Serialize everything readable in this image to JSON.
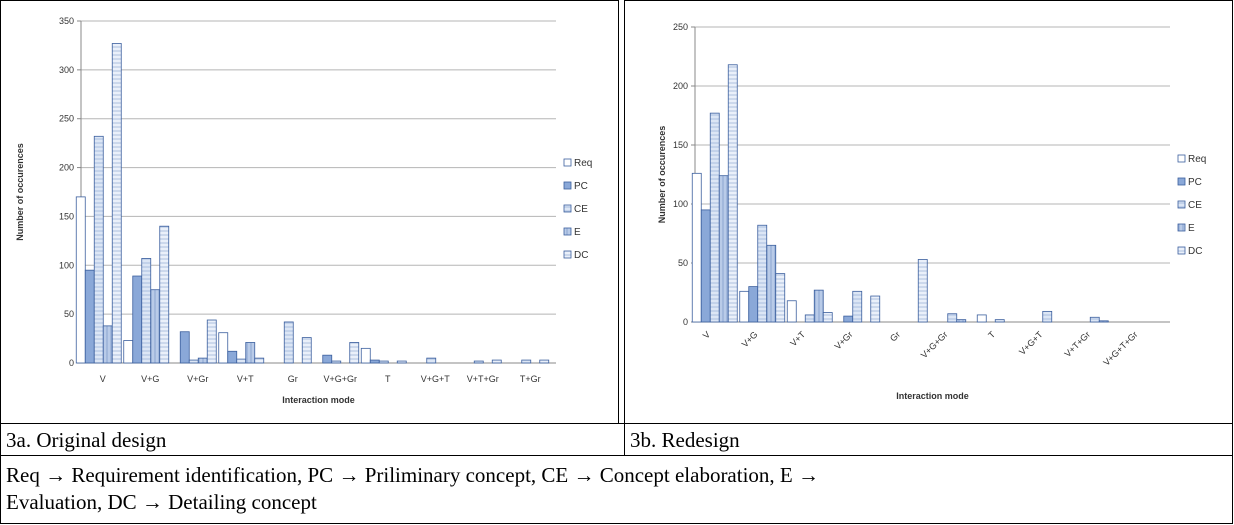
{
  "chart_data": [
    {
      "type": "bar",
      "title": "",
      "xlabel": "Interaction mode",
      "ylabel": "Number of occurences",
      "ylim": [
        0,
        350
      ],
      "yticks": [
        0,
        50,
        100,
        150,
        200,
        250,
        300,
        350
      ],
      "grid": true,
      "legend": "right",
      "categories": [
        "V",
        "V+G",
        "V+Gr",
        "V+T",
        "Gr",
        "V+G+Gr",
        "T",
        "V+G+T",
        "V+T+Gr",
        "T+Gr"
      ],
      "series": [
        {
          "name": "Req",
          "values": [
            170,
            23,
            0,
            31,
            0,
            0,
            15,
            0,
            0,
            0
          ]
        },
        {
          "name": "PC",
          "values": [
            95,
            89,
            32,
            12,
            0,
            8,
            3,
            0,
            0,
            0
          ]
        },
        {
          "name": "CE",
          "values": [
            232,
            107,
            3,
            4,
            42,
            2,
            2,
            5,
            2,
            3
          ]
        },
        {
          "name": "E",
          "values": [
            38,
            75,
            5,
            21,
            0,
            0,
            0,
            0,
            0,
            0
          ]
        },
        {
          "name": "DC",
          "values": [
            327,
            140,
            44,
            5,
            26,
            21,
            2,
            0,
            3,
            3
          ]
        }
      ]
    },
    {
      "type": "bar",
      "title": "",
      "xlabel": "Interaction mode",
      "ylabel": "Number of occurences",
      "ylim": [
        0,
        250
      ],
      "yticks": [
        0,
        50,
        100,
        150,
        200,
        250
      ],
      "grid": true,
      "legend": "right",
      "categories": [
        "V",
        "V+G",
        "V+T",
        "V+Gr",
        "Gr",
        "V+G+Gr",
        "T",
        "V+G+T",
        "V+T+Gr",
        "V+G+T+Gr"
      ],
      "series": [
        {
          "name": "Req",
          "values": [
            126,
            26,
            18,
            0,
            0,
            0,
            6,
            0,
            0,
            0
          ]
        },
        {
          "name": "PC",
          "values": [
            95,
            30,
            0,
            5,
            0,
            0,
            0,
            0,
            0,
            0
          ]
        },
        {
          "name": "CE",
          "values": [
            177,
            82,
            6,
            26,
            0,
            7,
            2,
            9,
            4,
            0
          ]
        },
        {
          "name": "E",
          "values": [
            124,
            65,
            27,
            0,
            0,
            2,
            0,
            0,
            1,
            0
          ]
        },
        {
          "name": "DC",
          "values": [
            218,
            41,
            8,
            22,
            53,
            0,
            0,
            0,
            0,
            0
          ]
        }
      ]
    }
  ],
  "captions": {
    "left": "3a. Original design",
    "right": "3b. Redesign"
  },
  "note": {
    "line1": "Req → Requirement identification, PC → Priliminary concept, CE → Concept elaboration, E →",
    "line2": "Evaluation, DC → Detailing concept"
  },
  "colors": {
    "gridline": "#b5b5b5",
    "axis": "#888888",
    "bar_border": "#3b5f9e",
    "Req": "#ffffff",
    "PC": "#8aa8d8",
    "CE": "#dce6f5",
    "E": "#b9cbe8",
    "DC": "#eaf0fa"
  }
}
